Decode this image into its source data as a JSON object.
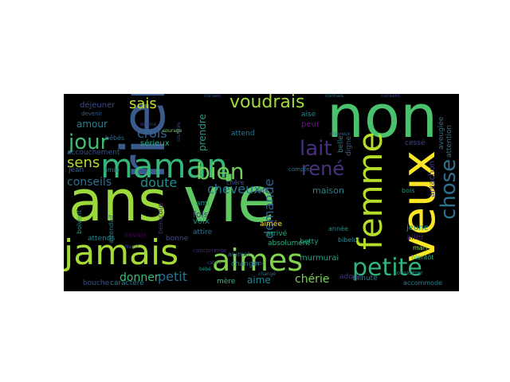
{
  "wordcloud": {
    "background": "#000000",
    "words": [
      {
        "text": "vie",
        "color": "#5ec962"
      },
      {
        "text": "ans",
        "color": "#9bd93c"
      },
      {
        "text": "non",
        "color": "#4ac16d"
      },
      {
        "text": "rien",
        "color": "#3b5a8c"
      },
      {
        "text": "jamais",
        "color": "#a5db36"
      },
      {
        "text": "aimes",
        "color": "#7fd34e"
      },
      {
        "text": "veux",
        "color": "#fde725"
      },
      {
        "text": "maman",
        "color": "#35b779"
      },
      {
        "text": "femme",
        "color": "#b5de2b"
      },
      {
        "text": "petite",
        "color": "#2fb47c"
      },
      {
        "text": "bien",
        "color": "#6ece58"
      },
      {
        "text": "jour",
        "color": "#3dbc74"
      },
      {
        "text": "chose",
        "color": "#2c728e"
      },
      {
        "text": "lait",
        "color": "#472f7d"
      },
      {
        "text": "rené",
        "color": "#46327e"
      },
      {
        "text": "voudrais",
        "color": "#a2da37"
      },
      {
        "text": "sais",
        "color": "#c8e020"
      },
      {
        "text": "sens",
        "color": "#b2dd2d"
      },
      {
        "text": "crois",
        "color": "#31668e"
      },
      {
        "text": "conseils",
        "color": "#2e6e8e"
      },
      {
        "text": "doute",
        "color": "#218f8d"
      },
      {
        "text": "cheveux",
        "color": "#2a778e"
      },
      {
        "text": "demande",
        "color": "#33628d"
      },
      {
        "text": "petit",
        "color": "#2d708e"
      },
      {
        "text": "donner",
        "color": "#3dbc74"
      },
      {
        "text": "aime",
        "color": "#23888e"
      },
      {
        "text": "chérie",
        "color": "#7ad151"
      },
      {
        "text": "amour",
        "color": "#26828e"
      },
      {
        "text": "déjeuner",
        "color": "#3e4a89"
      },
      {
        "text": "prendre",
        "color": "#1f9e89"
      },
      {
        "text": "attend",
        "color": "#2a788e"
      },
      {
        "text": "sérieux",
        "color": "#29af7f"
      },
      {
        "text": "maison",
        "color": "#25848e"
      },
      {
        "text": "murmurai",
        "color": "#20a386"
      },
      {
        "text": "betty",
        "color": "#1fa187"
      },
      {
        "text": "aimée",
        "color": "#fde725"
      },
      {
        "text": "arrivé",
        "color": "#22a884"
      },
      {
        "text": "absolument",
        "color": "#2db27d"
      },
      {
        "text": "jeune",
        "color": "#1e9b8a"
      },
      {
        "text": "aller",
        "color": "#481c6e"
      },
      {
        "text": "mari",
        "color": "#8bd646"
      },
      {
        "text": "bientôt",
        "color": "#2db27d"
      },
      {
        "text": "minute",
        "color": "#29798e"
      },
      {
        "text": "accommode",
        "color": "#26828e"
      },
      {
        "text": "mère",
        "color": "#35b779"
      },
      {
        "text": "bouche",
        "color": "#3b528b"
      },
      {
        "text": "caractère",
        "color": "#2a788e"
      },
      {
        "text": "attends",
        "color": "#25858e"
      },
      {
        "text": "savais",
        "color": "#440154"
      },
      {
        "text": "voix",
        "color": "#21918c"
      },
      {
        "text": "bonne",
        "color": "#3e4989"
      },
      {
        "text": "attire",
        "color": "#2c728e"
      },
      {
        "text": "ami",
        "color": "#1f988b"
      },
      {
        "text": "fois",
        "color": "#443983"
      },
      {
        "text": "peur",
        "color": "#7e03a8"
      },
      {
        "text": "belle",
        "color": "#2a788e"
      },
      {
        "text": "digne",
        "color": "#38588c"
      },
      {
        "text": "accouchement",
        "color": "#3b528b"
      },
      {
        "text": "amie",
        "color": "#23898e"
      },
      {
        "text": "jean",
        "color": "#35608d"
      },
      {
        "text": "bébés",
        "color": "#31688e"
      },
      {
        "text": "devenir",
        "color": "#375b8d"
      },
      {
        "text": "changer",
        "color": "#277f8e"
      },
      {
        "text": "adore",
        "color": "#453581"
      },
      {
        "text": "cessé",
        "color": "#3f4788"
      },
      {
        "text": "arcachon",
        "color": "#443a83"
      },
      {
        "text": "aveuglée",
        "color": "#2f6c8e"
      },
      {
        "text": "attention",
        "color": "#2b748e"
      },
      {
        "text": "année",
        "color": "#228c8d"
      },
      {
        "text": "bibelot",
        "color": "#24868e"
      },
      {
        "text": "animal",
        "color": "#2e6f8e"
      },
      {
        "text": "choc",
        "color": "#3a548c"
      },
      {
        "text": "café",
        "color": "#414487"
      },
      {
        "text": "compte",
        "color": "#2d708e"
      },
      {
        "text": "aise",
        "color": "#25848e"
      },
      {
        "text": "chère",
        "color": "#3b528b"
      },
      {
        "text": "boivent",
        "color": "#1f978b"
      },
      {
        "text": "beaucoup",
        "color": "#482576"
      },
      {
        "text": "attendait",
        "color": "#2a788e"
      },
      {
        "text": "bois",
        "color": "#1f968b"
      },
      {
        "text": "considérer",
        "color": "#26818e"
      },
      {
        "text": "conseil",
        "color": "#38588c"
      },
      {
        "text": "crudités",
        "color": "#3b528b"
      },
      {
        "text": "devine",
        "color": "#433e85"
      },
      {
        "text": "courage",
        "color": "#6ece58"
      },
      {
        "text": "changé",
        "color": "#2e6e8e"
      },
      {
        "text": "concurrente",
        "color": "#482878"
      },
      {
        "text": "consent",
        "color": "#3e4a89"
      },
      {
        "text": "cheveux",
        "color": "#2d708e"
      },
      {
        "text": "calme",
        "color": "#3f4788"
      },
      {
        "text": "bébé",
        "color": "#1f9a8a"
      },
      {
        "text": "connais",
        "color": "#2c738e"
      },
      {
        "text": "disent",
        "color": "#404588"
      }
    ]
  }
}
